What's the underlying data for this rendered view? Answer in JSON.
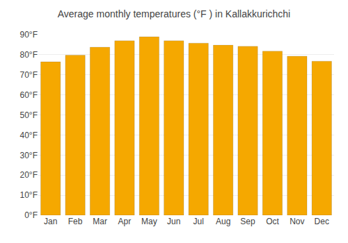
{
  "chart_data": {
    "type": "bar",
    "title": "Average monthly temperatures (°F ) in Kallakkurichchi",
    "categories": [
      "Jan",
      "Feb",
      "Mar",
      "Apr",
      "May",
      "Jun",
      "Jul",
      "Aug",
      "Sep",
      "Oct",
      "Nov",
      "Dec"
    ],
    "values": [
      76.5,
      79.8,
      83.8,
      87.0,
      89.0,
      87.0,
      85.8,
      84.8,
      84.2,
      81.8,
      79.3,
      76.8
    ],
    "color": "#F5A800",
    "ylim": [
      0,
      90
    ],
    "yticks": [
      {
        "value": 0,
        "label": "0°F"
      },
      {
        "value": 10,
        "label": "10°F"
      },
      {
        "value": 20,
        "label": "20°F"
      },
      {
        "value": 30,
        "label": "30°F"
      },
      {
        "value": 40,
        "label": "40°F"
      },
      {
        "value": 50,
        "label": "50°F"
      },
      {
        "value": 60,
        "label": "60°F"
      },
      {
        "value": 70,
        "label": "70°F"
      },
      {
        "value": 80,
        "label": "80°F"
      },
      {
        "value": 90,
        "label": "90°F"
      }
    ],
    "grid": true
  }
}
